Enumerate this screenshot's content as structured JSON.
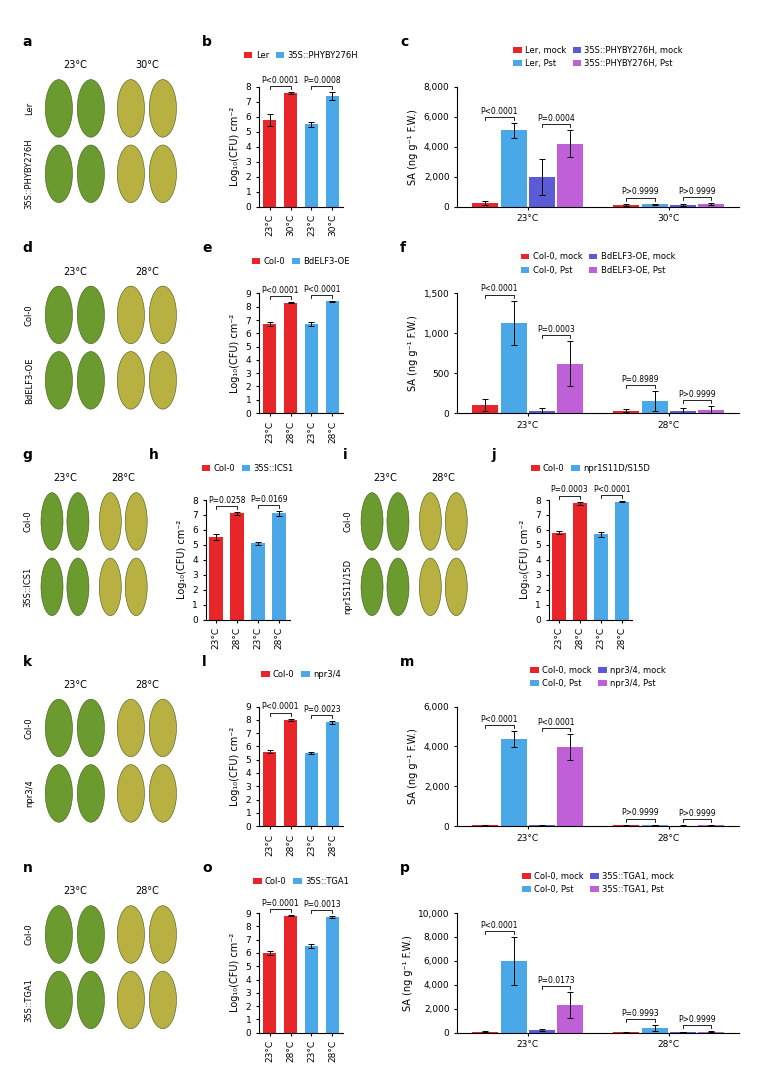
{
  "chart_data": [
    {
      "type": "bar",
      "panel_label": "b",
      "y_label": "Log₁₀(CFU) cm⁻²",
      "categories": [
        "23°C",
        "30°C",
        "23°C",
        "30°C"
      ],
      "series": [
        {
          "name": "Ler",
          "color": "#e8262a",
          "values": [
            5.8,
            7.6,
            null,
            null
          ],
          "errors": [
            0.4,
            0.05,
            null,
            null
          ]
        },
        {
          "name": "35S::PHYBY276H",
          "color": "#4aa8e8",
          "values": [
            null,
            null,
            5.5,
            7.4
          ],
          "errors": [
            null,
            null,
            0.15,
            0.25
          ]
        }
      ],
      "ylim": [
        0,
        8
      ],
      "yticks": [
        0,
        1,
        2,
        3,
        4,
        5,
        6,
        7,
        8
      ],
      "annotations": [
        {
          "text": "P<0.0001",
          "bars": [
            [
              0,
              0
            ],
            [
              1,
              0
            ]
          ]
        },
        {
          "text": "P=0.0008",
          "bars": [
            [
              2,
              1
            ],
            [
              3,
              1
            ]
          ]
        }
      ]
    },
    {
      "type": "bar",
      "panel_label": "c",
      "y_label": "SA (ng g⁻¹ F.W.)",
      "categories": [
        "23°C",
        "30°C"
      ],
      "series": [
        {
          "name": "Ler, mock",
          "color": "#e8262a",
          "values": [
            250,
            100
          ],
          "errors": [
            150,
            50
          ]
        },
        {
          "name": "Ler, Pst",
          "color": "#4aa8e8",
          "values": [
            5100,
            150
          ],
          "errors": [
            500,
            50
          ]
        },
        {
          "name": "35S::PHYBY276H, mock",
          "color": "#5b5bd6",
          "values": [
            2000,
            100
          ],
          "errors": [
            1200,
            50
          ]
        },
        {
          "name": "35S::PHYBY276H, Pst",
          "color": "#c060d8",
          "values": [
            4200,
            150
          ],
          "errors": [
            900,
            80
          ]
        }
      ],
      "ylim": [
        0,
        8000
      ],
      "yticks": [
        0,
        {
          "value": 2000,
          "label": "2,000"
        },
        {
          "value": 4000,
          "label": "4,000"
        },
        {
          "value": 6000,
          "label": "6,000"
        },
        {
          "value": 8000,
          "label": "8,000"
        }
      ],
      "annotations": [
        {
          "text": "P<0.0001",
          "bars": [
            [
              0,
              0
            ],
            [
              0,
              1
            ]
          ]
        },
        {
          "text": "P=0.0004",
          "bars": [
            [
              0,
              2
            ],
            [
              0,
              3
            ]
          ]
        },
        {
          "text": "P>0.9999",
          "bars": [
            [
              1,
              0
            ],
            [
              1,
              1
            ]
          ]
        },
        {
          "text": "P>0.9999",
          "bars": [
            [
              1,
              2
            ],
            [
              1,
              3
            ]
          ]
        }
      ]
    },
    {
      "type": "bar",
      "panel_label": "e",
      "y_label": "Log₁₀(CFU) cm⁻²",
      "categories": [
        "23°C",
        "28°C",
        "23°C",
        "28°C"
      ],
      "series": [
        {
          "name": "Col-0",
          "color": "#e8262a",
          "values": [
            6.7,
            8.3,
            null,
            null
          ],
          "errors": [
            0.15,
            0.05,
            null,
            null
          ]
        },
        {
          "name": "BdELF3-OE",
          "color": "#4aa8e8",
          "values": [
            null,
            null,
            6.7,
            8.4
          ],
          "errors": [
            null,
            null,
            0.15,
            0.05
          ]
        }
      ],
      "ylim": [
        0,
        9
      ],
      "yticks": [
        0,
        1,
        2,
        3,
        4,
        5,
        6,
        7,
        8,
        9
      ],
      "annotations": [
        {
          "text": "P<0.0001",
          "bars": [
            [
              0,
              0
            ],
            [
              1,
              0
            ]
          ]
        },
        {
          "text": "P<0.0001",
          "bars": [
            [
              2,
              1
            ],
            [
              3,
              1
            ]
          ]
        }
      ]
    },
    {
      "type": "bar",
      "panel_label": "f",
      "y_label": "SA (ng g⁻¹ F.W.)",
      "categories": [
        "23°C",
        "28°C"
      ],
      "series": [
        {
          "name": "Col-0, mock",
          "color": "#e8262a",
          "values": [
            100,
            30
          ],
          "errors": [
            80,
            20
          ]
        },
        {
          "name": "Col-0, Pst",
          "color": "#4aa8e8",
          "values": [
            1130,
            150
          ],
          "errors": [
            280,
            130
          ]
        },
        {
          "name": "BdELF3-OE, mock",
          "color": "#5b5bd6",
          "values": [
            30,
            30
          ],
          "errors": [
            30,
            30
          ]
        },
        {
          "name": "BdELF3-OE, Pst",
          "color": "#c060d8",
          "values": [
            620,
            40
          ],
          "errors": [
            280,
            50
          ]
        }
      ],
      "ylim": [
        0,
        1500
      ],
      "yticks": [
        0,
        500,
        {
          "value": 1000,
          "label": "1,000"
        },
        {
          "value": 1500,
          "label": "1,500"
        }
      ],
      "annotations": [
        {
          "text": "P<0.0001",
          "bars": [
            [
              0,
              0
            ],
            [
              0,
              1
            ]
          ]
        },
        {
          "text": "P=0.0003",
          "bars": [
            [
              0,
              2
            ],
            [
              0,
              3
            ]
          ]
        },
        {
          "text": "P=0.8989",
          "bars": [
            [
              1,
              0
            ],
            [
              1,
              1
            ]
          ]
        },
        {
          "text": "P>0.9999",
          "bars": [
            [
              1,
              2
            ],
            [
              1,
              3
            ]
          ]
        }
      ]
    },
    {
      "type": "bar",
      "panel_label": "h",
      "y_label": "Log₁₀(CFU) cm⁻²",
      "categories": [
        "23°C",
        "28°C",
        "23°C",
        "28°C"
      ],
      "series": [
        {
          "name": "Col-0",
          "color": "#e8262a",
          "values": [
            5.5,
            7.1,
            null,
            null
          ],
          "errors": [
            0.2,
            0.1,
            null,
            null
          ]
        },
        {
          "name": "35S::ICS1",
          "color": "#4aa8e8",
          "values": [
            null,
            null,
            5.1,
            7.1
          ],
          "errors": [
            null,
            null,
            0.1,
            0.15
          ]
        }
      ],
      "ylim": [
        0,
        8
      ],
      "yticks": [
        0,
        1,
        2,
        3,
        4,
        5,
        6,
        7,
        8
      ],
      "annotations": [
        {
          "text": "P=0.0258",
          "bars": [
            [
              0,
              0
            ],
            [
              1,
              0
            ]
          ]
        },
        {
          "text": "P=0.0169",
          "bars": [
            [
              2,
              1
            ],
            [
              3,
              1
            ]
          ]
        }
      ]
    },
    {
      "type": "bar",
      "panel_label": "j",
      "y_label": "Log₁₀(CFU) cm⁻²",
      "categories": [
        "23°C",
        "28°C",
        "23°C",
        "28°C"
      ],
      "series": [
        {
          "name": "Col-0",
          "color": "#e8262a",
          "values": [
            5.8,
            7.8,
            null,
            null
          ],
          "errors": [
            0.1,
            0.1,
            null,
            null
          ]
        },
        {
          "name": "npr1S11D/S15D",
          "color": "#4aa8e8",
          "values": [
            null,
            null,
            5.7,
            7.9
          ],
          "errors": [
            null,
            null,
            0.15,
            0.05
          ]
        }
      ],
      "ylim": [
        0,
        8
      ],
      "yticks": [
        0,
        1,
        2,
        3,
        4,
        5,
        6,
        7,
        8
      ],
      "annotations": [
        {
          "text": "P=0.0003",
          "bars": [
            [
              0,
              0
            ],
            [
              1,
              0
            ]
          ]
        },
        {
          "text": "P<0.0001",
          "bars": [
            [
              2,
              1
            ],
            [
              3,
              1
            ]
          ]
        }
      ]
    },
    {
      "type": "bar",
      "panel_label": "l",
      "y_label": "Log₁₀(CFU) cm⁻²",
      "categories": [
        "23°C",
        "28°C",
        "23°C",
        "28°C"
      ],
      "series": [
        {
          "name": "Col-0",
          "color": "#e8262a",
          "values": [
            5.6,
            8.0,
            null,
            null
          ],
          "errors": [
            0.1,
            0.1,
            null,
            null
          ]
        },
        {
          "name": "npr3/4",
          "color": "#4aa8e8",
          "values": [
            null,
            null,
            5.5,
            7.8
          ],
          "errors": [
            null,
            null,
            0.1,
            0.1
          ]
        }
      ],
      "ylim": [
        0,
        9
      ],
      "yticks": [
        0,
        1,
        2,
        3,
        4,
        5,
        6,
        7,
        8,
        9
      ],
      "annotations": [
        {
          "text": "P<0.0001",
          "bars": [
            [
              0,
              0
            ],
            [
              1,
              0
            ]
          ]
        },
        {
          "text": "P=0.0023",
          "bars": [
            [
              2,
              1
            ],
            [
              3,
              1
            ]
          ]
        }
      ]
    },
    {
      "type": "bar",
      "panel_label": "m",
      "y_label": "SA (ng g⁻¹ F.W.)",
      "categories": [
        "23°C",
        "28°C"
      ],
      "series": [
        {
          "name": "Col-0, mock",
          "color": "#e8262a",
          "values": [
            40,
            40
          ],
          "errors": [
            20,
            10
          ]
        },
        {
          "name": "Col-0, Pst",
          "color": "#4aa8e8",
          "values": [
            4350,
            60
          ],
          "errors": [
            400,
            20
          ]
        },
        {
          "name": "npr3/4, mock",
          "color": "#5b5bd6",
          "values": [
            40,
            30
          ],
          "errors": [
            20,
            10
          ]
        },
        {
          "name": "npr3/4, Pst",
          "color": "#c060d8",
          "values": [
            3950,
            40
          ],
          "errors": [
            650,
            10
          ]
        }
      ],
      "ylim": [
        0,
        6000
      ],
      "yticks": [
        0,
        {
          "value": 2000,
          "label": "2,000"
        },
        {
          "value": 4000,
          "label": "4,000"
        },
        {
          "value": 6000,
          "label": "6,000"
        }
      ],
      "annotations": [
        {
          "text": "P<0.0001",
          "bars": [
            [
              0,
              0
            ],
            [
              0,
              1
            ]
          ]
        },
        {
          "text": "P<0.0001",
          "bars": [
            [
              0,
              2
            ],
            [
              0,
              3
            ]
          ]
        },
        {
          "text": "P>0.9999",
          "bars": [
            [
              1,
              0
            ],
            [
              1,
              1
            ]
          ]
        },
        {
          "text": "P>0.9999",
          "bars": [
            [
              1,
              2
            ],
            [
              1,
              3
            ]
          ]
        }
      ]
    },
    {
      "type": "bar",
      "panel_label": "o",
      "y_label": "Log₁₀(CFU) cm⁻²",
      "categories": [
        "23°C",
        "28°C",
        "23°C",
        "28°C"
      ],
      "series": [
        {
          "name": "Col-0",
          "color": "#e8262a",
          "values": [
            6.0,
            8.8,
            null,
            null
          ],
          "errors": [
            0.15,
            0.05,
            null,
            null
          ]
        },
        {
          "name": "35S::TGA1",
          "color": "#4aa8e8",
          "values": [
            null,
            null,
            6.5,
            8.7
          ],
          "errors": [
            null,
            null,
            0.15,
            0.1
          ]
        }
      ],
      "ylim": [
        0,
        9
      ],
      "yticks": [
        0,
        1,
        2,
        3,
        4,
        5,
        6,
        7,
        8,
        9
      ],
      "annotations": [
        {
          "text": "P=0.0001",
          "bars": [
            [
              0,
              0
            ],
            [
              1,
              0
            ]
          ]
        },
        {
          "text": "P=0.0013",
          "bars": [
            [
              2,
              1
            ],
            [
              3,
              1
            ]
          ]
        }
      ]
    },
    {
      "type": "bar",
      "panel_label": "p",
      "y_label": "SA (ng g⁻¹ F.W.)",
      "categories": [
        "23°C",
        "28°C"
      ],
      "series": [
        {
          "name": "Col-0, mock",
          "color": "#e8262a",
          "values": [
            80,
            30
          ],
          "errors": [
            50,
            20
          ]
        },
        {
          "name": "Col-0, Pst",
          "color": "#4aa8e8",
          "values": [
            6000,
            350
          ],
          "errors": [
            2000,
            250
          ]
        },
        {
          "name": "35S::TGA1, mock",
          "color": "#5b5bd6",
          "values": [
            200,
            40
          ],
          "errors": [
            80,
            20
          ]
        },
        {
          "name": "35S::TGA1, Pst",
          "color": "#c060d8",
          "values": [
            2300,
            80
          ],
          "errors": [
            1100,
            60
          ]
        }
      ],
      "ylim": [
        0,
        10000
      ],
      "yticks": [
        0,
        {
          "value": 2000,
          "label": "2,000"
        },
        {
          "value": 4000,
          "label": "4,000"
        },
        {
          "value": 6000,
          "label": "6,000"
        },
        {
          "value": 8000,
          "label": "8,000"
        },
        {
          "value": 10000,
          "label": "10,000"
        }
      ],
      "annotations": [
        {
          "text": "P<0.0001",
          "bars": [
            [
              0,
              0
            ],
            [
              0,
              1
            ]
          ]
        },
        {
          "text": "P=0.0173",
          "bars": [
            [
              0,
              2
            ],
            [
              0,
              3
            ]
          ]
        },
        {
          "text": "P=0.9993",
          "bars": [
            [
              1,
              0
            ],
            [
              1,
              1
            ]
          ]
        },
        {
          "text": "P>0.9999",
          "bars": [
            [
              1,
              2
            ],
            [
              1,
              3
            ]
          ]
        }
      ]
    }
  ],
  "photos": [
    {
      "panel_label": "a",
      "columns": [
        "23°C",
        "30°C"
      ],
      "rows": [
        "Ler",
        "35S::PHYBY276H"
      ]
    },
    {
      "panel_label": "d",
      "columns": [
        "23°C",
        "28°C"
      ],
      "rows": [
        "Col-0",
        "BdELF3-OE"
      ]
    },
    {
      "panel_label": "g",
      "columns": [
        "23°C",
        "28°C"
      ],
      "rows": [
        "Col-0",
        "35S::ICS1"
      ]
    },
    {
      "panel_label": "i",
      "columns": [
        "23°C",
        "28°C"
      ],
      "rows": [
        "Col-0",
        "npr1S11/15D"
      ]
    },
    {
      "panel_label": "k",
      "columns": [
        "23°C",
        "28°C"
      ],
      "rows": [
        "Col-0",
        "npr3/4"
      ]
    },
    {
      "panel_label": "n",
      "columns": [
        "23°C",
        "28°C"
      ],
      "rows": [
        "Col-0",
        "35S::TGA1"
      ]
    }
  ]
}
